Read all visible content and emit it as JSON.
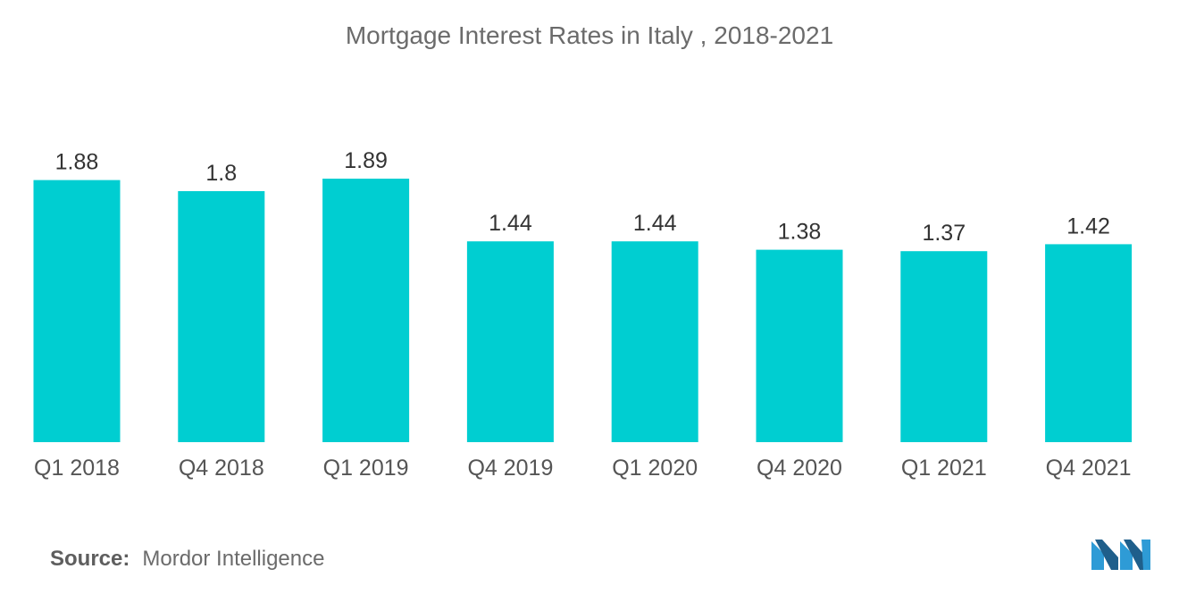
{
  "chart_data": {
    "type": "bar",
    "title": "Mortgage Interest Rates in Italy , 2018-2021",
    "categories": [
      "Q1 2018",
      "Q4 2018",
      "Q1 2019",
      "Q4 2019",
      "Q1 2020",
      "Q4 2020",
      "Q1 2021",
      "Q4 2021"
    ],
    "values": [
      1.88,
      1.8,
      1.89,
      1.44,
      1.44,
      1.38,
      1.37,
      1.42
    ],
    "value_labels": [
      "1.88",
      "1.8",
      "1.89",
      "1.44",
      "1.44",
      "1.38",
      "1.37",
      "1.42"
    ],
    "ylim": [
      0,
      1.89
    ],
    "grid": false,
    "legend": "none",
    "bar_color": "#00ced1"
  },
  "source": {
    "label": "Source:",
    "text": "Mordor Intelligence"
  },
  "logo": {
    "icon": "mordor-intelligence-logo-icon",
    "colors": [
      "#2e9bd6",
      "#1f5f8b"
    ]
  }
}
